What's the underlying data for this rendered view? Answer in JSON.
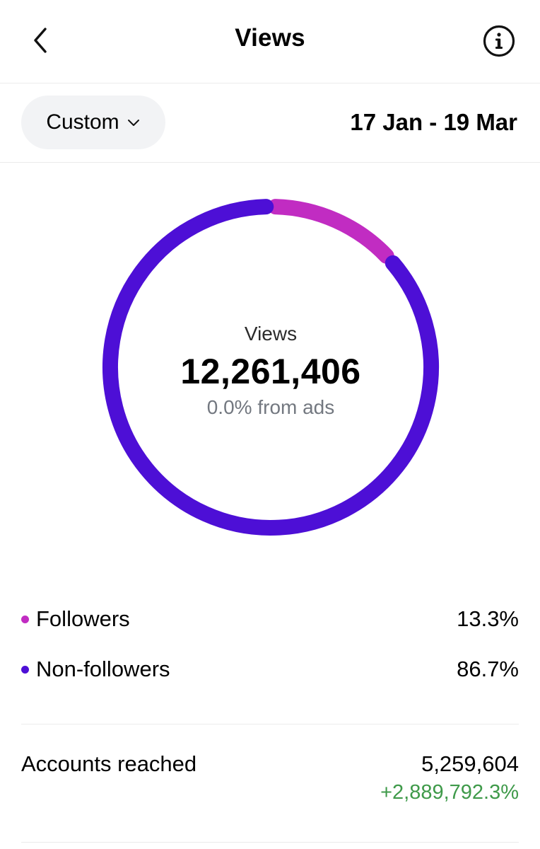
{
  "header": {
    "title": "Views",
    "back_icon": "chevron-left-icon",
    "info_icon": "info-icon"
  },
  "filter": {
    "period_label": "Custom",
    "period_icon": "chevron-down-icon",
    "date_range": "17 Jan - 19 Mar"
  },
  "summary": {
    "label": "Views",
    "total": "12,261,406",
    "ads_share": "0.0% from ads"
  },
  "chart_data": {
    "type": "pie",
    "categories": [
      "Followers",
      "Non-followers"
    ],
    "values": [
      13.3,
      86.7
    ],
    "colors": [
      "#c12cc2",
      "#4d0fd6"
    ]
  },
  "breakdown": [
    {
      "label": "Followers",
      "value": "13.3%",
      "color": "#c12cc2"
    },
    {
      "label": "Non-followers",
      "value": "86.7%",
      "color": "#4d0fd6"
    }
  ],
  "metrics": {
    "accounts_reached_label": "Accounts reached",
    "accounts_reached_value": "5,259,604",
    "accounts_reached_change": "+2,889,792.3%"
  }
}
